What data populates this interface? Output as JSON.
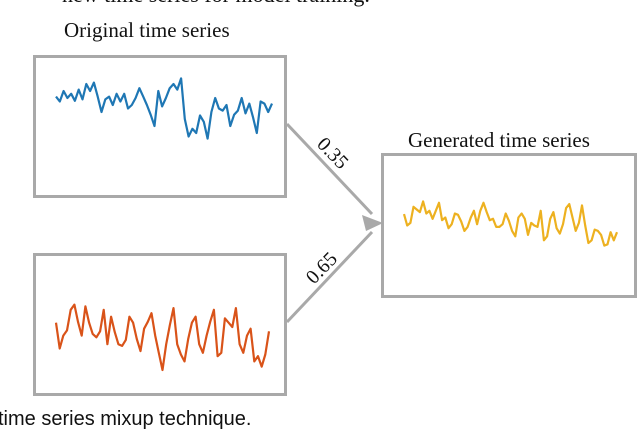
{
  "fragments": {
    "top": "new time series for model training.",
    "bottom": "time series mixup technique."
  },
  "titles": {
    "original": "Original time series",
    "generated": "Generated time series"
  },
  "weights": {
    "upper": "0.35",
    "lower": "0.65"
  },
  "colors": {
    "original": "#1f77b4",
    "second": "#d95319",
    "generated": "#edb120",
    "frame": "#a9a9a9",
    "arrow": "#a9a9a9"
  },
  "series": {
    "original": [
      0.62,
      0.55,
      0.7,
      0.6,
      0.66,
      0.56,
      0.72,
      0.58,
      0.8,
      0.7,
      0.82,
      0.62,
      0.4,
      0.58,
      0.62,
      0.5,
      0.66,
      0.55,
      0.66,
      0.45,
      0.5,
      0.6,
      0.74,
      0.62,
      0.5,
      0.36,
      0.2,
      0.7,
      0.48,
      0.6,
      0.74,
      0.8,
      0.72,
      0.88,
      0.3,
      0.05,
      0.16,
      0.1,
      0.35,
      0.26,
      0.02,
      0.4,
      0.6,
      0.45,
      0.42,
      0.5,
      0.2,
      0.36,
      0.42,
      0.6,
      0.38,
      0.52,
      0.32,
      0.1,
      0.55,
      0.52,
      0.4,
      0.52
    ],
    "second": [
      0.55,
      0.25,
      0.4,
      0.46,
      0.7,
      0.76,
      0.56,
      0.4,
      0.74,
      0.55,
      0.42,
      0.38,
      0.45,
      0.7,
      0.3,
      0.62,
      0.44,
      0.3,
      0.28,
      0.35,
      0.62,
      0.55,
      0.36,
      0.22,
      0.48,
      0.56,
      0.66,
      0.4,
      0.2,
      0.0,
      0.3,
      0.52,
      0.72,
      0.3,
      0.18,
      0.1,
      0.36,
      0.55,
      0.62,
      0.3,
      0.2,
      0.4,
      0.56,
      0.7,
      0.16,
      0.2,
      0.6,
      0.55,
      0.5,
      0.72,
      0.3,
      0.2,
      0.4,
      0.48,
      0.1,
      0.16,
      0.04,
      0.18,
      0.45
    ],
    "generated": [
      0.55,
      0.38,
      0.42,
      0.66,
      0.62,
      0.58,
      0.74,
      0.56,
      0.6,
      0.48,
      0.6,
      0.72,
      0.46,
      0.5,
      0.34,
      0.4,
      0.56,
      0.54,
      0.44,
      0.3,
      0.36,
      0.5,
      0.6,
      0.4,
      0.6,
      0.72,
      0.58,
      0.46,
      0.48,
      0.36,
      0.36,
      0.4,
      0.56,
      0.45,
      0.3,
      0.22,
      0.5,
      0.56,
      0.48,
      0.24,
      0.42,
      0.38,
      0.36,
      0.6,
      0.16,
      0.22,
      0.48,
      0.58,
      0.34,
      0.26,
      0.4,
      0.64,
      0.7,
      0.5,
      0.3,
      0.42,
      0.68,
      0.38,
      0.12,
      0.16,
      0.32,
      0.3,
      0.24,
      0.08,
      0.1,
      0.28,
      0.16,
      0.28
    ]
  }
}
